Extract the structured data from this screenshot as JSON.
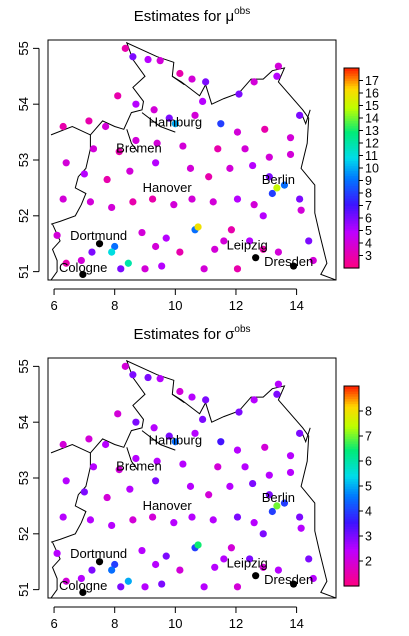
{
  "chart_data": [
    {
      "type": "scatter",
      "title_main": "Estimates for μ",
      "title_sup": "obs",
      "xlim": [
        5.8,
        15.3
      ],
      "ylim": [
        50.85,
        55.15
      ],
      "x_ticks": [
        "6",
        "8",
        "10",
        "12",
        "14"
      ],
      "y_ticks": [
        "51",
        "52",
        "53",
        "54",
        "55"
      ],
      "colorbar": {
        "range": [
          2,
          18
        ],
        "ticks": [
          "3",
          "4",
          "5",
          "6",
          "7",
          "8",
          "9",
          "10",
          "11",
          "12",
          "13",
          "14",
          "15",
          "16",
          "17"
        ]
      },
      "cities": [
        {
          "name": "Hamburg",
          "lon": 10.0,
          "lat": 53.55
        },
        {
          "name": "Bremen",
          "lon": 8.8,
          "lat": 53.08
        },
        {
          "name": "Berlin",
          "lon": 13.4,
          "lat": 52.52
        },
        {
          "name": "Hanover",
          "lon": 9.73,
          "lat": 52.37
        },
        {
          "name": "Dortmund",
          "lon": 7.47,
          "lat": 51.51
        },
        {
          "name": "Leipzig",
          "lon": 12.37,
          "lat": 51.34
        },
        {
          "name": "Dresden",
          "lon": 13.74,
          "lat": 51.05
        },
        {
          "name": "Cologne",
          "lon": 6.96,
          "lat": 50.94
        }
      ],
      "points": [
        [
          8.35,
          55.0,
          3
        ],
        [
          8.6,
          54.85,
          6
        ],
        [
          9.1,
          54.8,
          5
        ],
        [
          9.5,
          54.78,
          4
        ],
        [
          10.15,
          54.55,
          3
        ],
        [
          10.55,
          54.45,
          4
        ],
        [
          11.0,
          54.4,
          6
        ],
        [
          12.1,
          54.18,
          6
        ],
        [
          12.6,
          54.4,
          4
        ],
        [
          13.4,
          54.68,
          4
        ],
        [
          13.35,
          54.5,
          5
        ],
        [
          14.1,
          53.8,
          6
        ],
        [
          6.3,
          53.6,
          3
        ],
        [
          7.15,
          53.7,
          3
        ],
        [
          7.7,
          53.6,
          4
        ],
        [
          8.1,
          54.15,
          3
        ],
        [
          8.7,
          54.0,
          5
        ],
        [
          9.3,
          53.9,
          4
        ],
        [
          9.8,
          53.75,
          6
        ],
        [
          10.0,
          53.65,
          10
        ],
        [
          10.65,
          53.8,
          4
        ],
        [
          10.9,
          54.05,
          5
        ],
        [
          11.5,
          53.65,
          8
        ],
        [
          12.05,
          53.5,
          4
        ],
        [
          12.95,
          53.55,
          3
        ],
        [
          13.8,
          53.4,
          4
        ],
        [
          7.3,
          53.2,
          4
        ],
        [
          8.15,
          53.15,
          3
        ],
        [
          8.7,
          53.35,
          4
        ],
        [
          9.4,
          53.3,
          4
        ],
        [
          10.25,
          53.25,
          4
        ],
        [
          11.4,
          53.2,
          3
        ],
        [
          12.3,
          53.2,
          4
        ],
        [
          13.1,
          53.05,
          4
        ],
        [
          13.8,
          53.1,
          4
        ],
        [
          6.4,
          52.95,
          4
        ],
        [
          7.0,
          52.75,
          5
        ],
        [
          7.75,
          52.65,
          3
        ],
        [
          8.5,
          52.8,
          4
        ],
        [
          9.35,
          52.95,
          5
        ],
        [
          10.5,
          52.85,
          4
        ],
        [
          11.1,
          52.7,
          3
        ],
        [
          11.8,
          52.85,
          4
        ],
        [
          12.55,
          52.9,
          5
        ],
        [
          13.1,
          52.7,
          6
        ],
        [
          13.6,
          52.55,
          9
        ],
        [
          13.35,
          52.5,
          15
        ],
        [
          13.2,
          52.4,
          8
        ],
        [
          14.1,
          52.3,
          6
        ],
        [
          6.3,
          52.3,
          4
        ],
        [
          7.2,
          52.25,
          4
        ],
        [
          7.9,
          52.15,
          4
        ],
        [
          8.6,
          52.25,
          3
        ],
        [
          9.25,
          52.3,
          3
        ],
        [
          9.95,
          52.2,
          4
        ],
        [
          10.55,
          52.3,
          4
        ],
        [
          11.25,
          52.25,
          4
        ],
        [
          12.05,
          52.3,
          5
        ],
        [
          12.6,
          52.2,
          4
        ],
        [
          12.9,
          52.0,
          5
        ],
        [
          14.15,
          52.1,
          4
        ],
        [
          6.1,
          51.65,
          4
        ],
        [
          7.5,
          51.5,
          0
        ],
        [
          8.0,
          51.45,
          9
        ],
        [
          7.25,
          51.35,
          6
        ],
        [
          6.9,
          51.2,
          4
        ],
        [
          6.4,
          51.15,
          3
        ],
        [
          7.9,
          51.35,
          11
        ],
        [
          8.45,
          51.15,
          12
        ],
        [
          8.9,
          51.7,
          4
        ],
        [
          9.35,
          51.45,
          4
        ],
        [
          9.7,
          51.6,
          5
        ],
        [
          10.15,
          51.35,
          3
        ],
        [
          10.65,
          51.75,
          9
        ],
        [
          10.75,
          51.8,
          16
        ],
        [
          11.3,
          51.4,
          4
        ],
        [
          11.6,
          51.55,
          4
        ],
        [
          11.85,
          51.75,
          3
        ],
        [
          12.45,
          51.55,
          5
        ],
        [
          12.9,
          51.4,
          3
        ],
        [
          13.4,
          51.35,
          4
        ],
        [
          14.4,
          51.55,
          6
        ],
        [
          14.55,
          51.2,
          4
        ],
        [
          8.2,
          51.05,
          6
        ],
        [
          9.0,
          51.05,
          4
        ],
        [
          9.55,
          51.1,
          5
        ],
        [
          10.95,
          51.05,
          4
        ],
        [
          12.05,
          51.05,
          3
        ],
        [
          12.65,
          51.25,
          0
        ],
        [
          13.9,
          51.1,
          0
        ],
        [
          6.95,
          50.95,
          0
        ]
      ]
    },
    {
      "type": "scatter",
      "title_main": "Estimates for σ",
      "title_sup": "obs",
      "xlim": [
        5.8,
        15.3
      ],
      "ylim": [
        50.85,
        55.15
      ],
      "x_ticks": [
        "6",
        "8",
        "10",
        "12",
        "14"
      ],
      "y_ticks": [
        "51",
        "52",
        "53",
        "54",
        "55"
      ],
      "colorbar": {
        "range": [
          1,
          9
        ],
        "ticks": [
          "2",
          "3",
          "4",
          "5",
          "6",
          "7",
          "8"
        ]
      },
      "cities": [
        {
          "name": "Hamburg",
          "lon": 10.0,
          "lat": 53.55
        },
        {
          "name": "Bremen",
          "lon": 8.8,
          "lat": 53.08
        },
        {
          "name": "Berlin",
          "lon": 13.4,
          "lat": 52.52
        },
        {
          "name": "Hanover",
          "lon": 9.73,
          "lat": 52.37
        },
        {
          "name": "Dortmund",
          "lon": 7.47,
          "lat": 51.51
        },
        {
          "name": "Leipzig",
          "lon": 12.37,
          "lat": 51.34
        },
        {
          "name": "Dresden",
          "lon": 13.74,
          "lat": 51.05
        },
        {
          "name": "Cologne",
          "lon": 6.96,
          "lat": 50.94
        }
      ],
      "points": [
        [
          8.35,
          55.0,
          2
        ],
        [
          8.6,
          54.85,
          3
        ],
        [
          9.1,
          54.8,
          3
        ],
        [
          9.5,
          54.78,
          2.5
        ],
        [
          10.15,
          54.55,
          2
        ],
        [
          10.55,
          54.45,
          2.5
        ],
        [
          11.0,
          54.4,
          3
        ],
        [
          12.1,
          54.18,
          3
        ],
        [
          12.6,
          54.4,
          2.5
        ],
        [
          13.4,
          54.68,
          2.5
        ],
        [
          13.35,
          54.5,
          3
        ],
        [
          14.1,
          53.8,
          3
        ],
        [
          6.3,
          53.6,
          2
        ],
        [
          7.15,
          53.7,
          2
        ],
        [
          7.7,
          53.6,
          2.5
        ],
        [
          8.1,
          54.15,
          2
        ],
        [
          8.7,
          54.0,
          3
        ],
        [
          9.3,
          53.9,
          2.5
        ],
        [
          9.8,
          53.75,
          3
        ],
        [
          10.0,
          53.65,
          4.5
        ],
        [
          10.65,
          53.8,
          2.5
        ],
        [
          10.9,
          54.05,
          3
        ],
        [
          11.5,
          53.65,
          3.5
        ],
        [
          12.05,
          53.5,
          2.5
        ],
        [
          12.95,
          53.55,
          2
        ],
        [
          13.8,
          53.4,
          2.5
        ],
        [
          7.3,
          53.2,
          2.5
        ],
        [
          8.15,
          53.15,
          2
        ],
        [
          8.7,
          53.35,
          2.5
        ],
        [
          9.4,
          53.3,
          2.5
        ],
        [
          10.25,
          53.25,
          2.5
        ],
        [
          11.4,
          53.2,
          2
        ],
        [
          12.3,
          53.2,
          2.5
        ],
        [
          13.1,
          53.05,
          2.5
        ],
        [
          13.8,
          53.1,
          2.5
        ],
        [
          6.4,
          52.95,
          2.5
        ],
        [
          7.0,
          52.75,
          3
        ],
        [
          7.75,
          52.65,
          2
        ],
        [
          8.5,
          52.8,
          2.5
        ],
        [
          9.35,
          52.95,
          3
        ],
        [
          10.5,
          52.85,
          2.5
        ],
        [
          11.1,
          52.7,
          2
        ],
        [
          11.8,
          52.85,
          2.5
        ],
        [
          12.55,
          52.9,
          3
        ],
        [
          13.1,
          52.7,
          3
        ],
        [
          13.6,
          52.55,
          4
        ],
        [
          13.35,
          52.5,
          7
        ],
        [
          13.2,
          52.4,
          4
        ],
        [
          14.1,
          52.3,
          3
        ],
        [
          6.3,
          52.3,
          2.5
        ],
        [
          7.2,
          52.25,
          2.5
        ],
        [
          7.9,
          52.15,
          2.5
        ],
        [
          8.6,
          52.25,
          2
        ],
        [
          9.25,
          52.3,
          2
        ],
        [
          9.95,
          52.2,
          2.5
        ],
        [
          10.55,
          52.3,
          2.5
        ],
        [
          11.25,
          52.25,
          2.5
        ],
        [
          12.05,
          52.3,
          3
        ],
        [
          12.6,
          52.2,
          2.5
        ],
        [
          12.9,
          52.0,
          3
        ],
        [
          14.15,
          52.1,
          2.5
        ],
        [
          6.1,
          51.65,
          2.5
        ],
        [
          7.5,
          51.5,
          0
        ],
        [
          8.0,
          51.45,
          4
        ],
        [
          7.25,
          51.35,
          3
        ],
        [
          6.9,
          51.2,
          2.5
        ],
        [
          6.4,
          51.15,
          2
        ],
        [
          7.9,
          51.35,
          4.5
        ],
        [
          8.45,
          51.15,
          5
        ],
        [
          8.9,
          51.7,
          2.5
        ],
        [
          9.35,
          51.45,
          2.5
        ],
        [
          9.7,
          51.6,
          3
        ],
        [
          10.15,
          51.35,
          2
        ],
        [
          10.65,
          51.75,
          4
        ],
        [
          10.75,
          51.8,
          6.5
        ],
        [
          11.3,
          51.4,
          2.5
        ],
        [
          11.6,
          51.55,
          2.5
        ],
        [
          11.85,
          51.75,
          2
        ],
        [
          12.45,
          51.55,
          3
        ],
        [
          12.9,
          51.4,
          2
        ],
        [
          13.4,
          51.35,
          2.5
        ],
        [
          14.4,
          51.55,
          3
        ],
        [
          14.55,
          51.2,
          2.5
        ],
        [
          8.2,
          51.05,
          3
        ],
        [
          9.0,
          51.05,
          2.5
        ],
        [
          9.55,
          51.1,
          3
        ],
        [
          10.95,
          51.05,
          2.5
        ],
        [
          12.05,
          51.05,
          2
        ],
        [
          12.65,
          51.25,
          0
        ],
        [
          13.9,
          51.1,
          0
        ],
        [
          6.95,
          50.95,
          0
        ]
      ]
    }
  ]
}
